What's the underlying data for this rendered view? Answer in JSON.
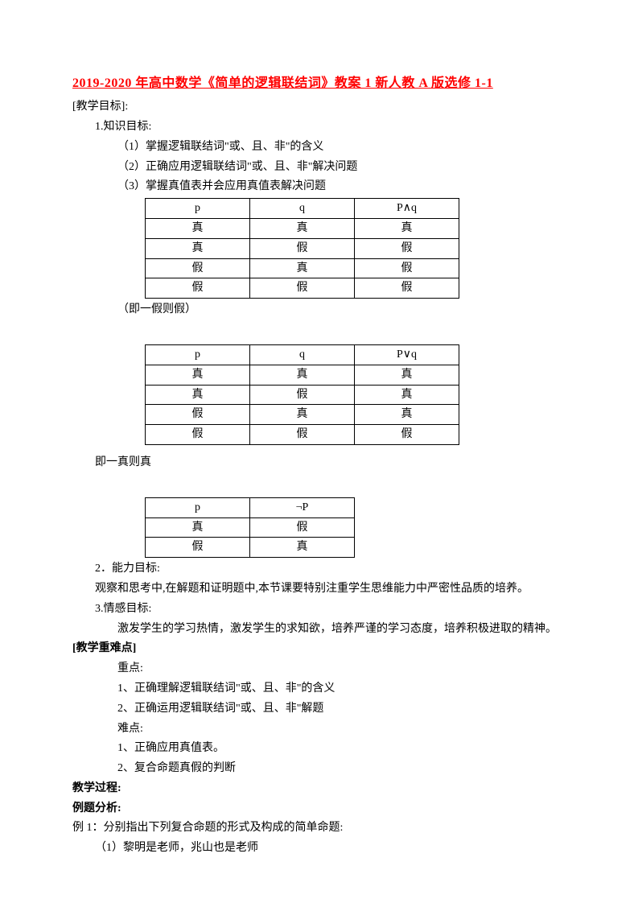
{
  "title": "2019-2020 年高中数学《简单的逻辑联结词》教案 1 新人教 A 版选修 1-1",
  "sec1": {
    "header": "[教学目标]:",
    "p1": "1.知识目标:",
    "i1": "（1）掌握逻辑联结词\"或、且、非\"的含义",
    "i2": "（2）正确应用逻辑联结词\"或、且、非\"解决问题",
    "i3": "（3）掌握真值表并会应用真值表解决问题"
  },
  "table1": {
    "h1": "p",
    "h2": "q",
    "h3": "P∧q",
    "r1c1": "真",
    "r1c2": "真",
    "r1c3": "真",
    "r2c1": "真",
    "r2c2": "假",
    "r2c3": "假",
    "r3c1": "假",
    "r3c2": "真",
    "r3c3": "假",
    "r4c1": "假",
    "r4c2": "假",
    "r4c3": "假"
  },
  "note1": "（即一假则假）",
  "table2": {
    "h1": "p",
    "h2": "q",
    "h3": "P∨q",
    "r1c1": "真",
    "r1c2": "真",
    "r1c3": "真",
    "r2c1": "真",
    "r2c2": "假",
    "r2c3": "真",
    "r3c1": "假",
    "r3c2": "真",
    "r3c3": "真",
    "r4c1": "假",
    "r4c2": "假",
    "r4c3": "假"
  },
  "note2": "即一真则真",
  "table3": {
    "h1": "p",
    "h2": "¬P",
    "r1c1": "真",
    "r1c2": "假",
    "r2c1": "假",
    "r2c2": "真"
  },
  "sec2": {
    "p1": "2．能力目标:",
    "i1": "观察和思考中,在解题和证明题中,本节课要特别注重学生思维能力中严密性品质的培养。",
    "p2": "3.情感目标:",
    "i2": "激发学生的学习热情，激发学生的求知欲，培养严谨的学习态度，培养积极进取的精神。"
  },
  "sec3": {
    "header": "[教学重难点]",
    "p1": "重点:",
    "i1": "1、正确理解逻辑联结词\"或、且、非\"的含义",
    "i2": "2、正确运用逻辑联结词\"或、且、非\"解题",
    "p2": "难点:",
    "i3": "1、正确应用真值表。",
    "i4": "2、复合命题真假的判断"
  },
  "sec4": {
    "h1": "教学过程:",
    "h2": "例题分析:",
    "p1": "例 1：分别指出下列复合命题的形式及构成的简单命题:",
    "i1": "（1）黎明是老师，兆山也是老师"
  }
}
